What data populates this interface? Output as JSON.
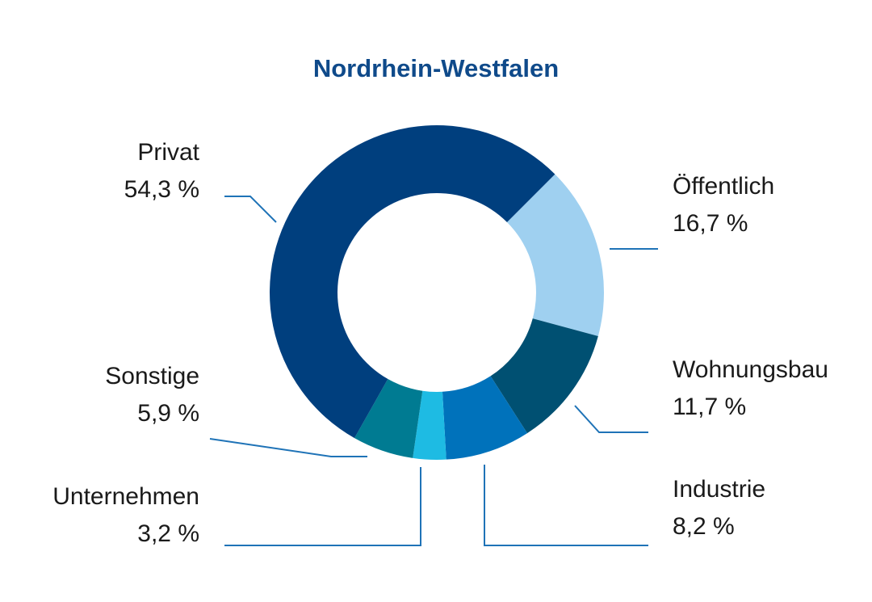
{
  "chart_data": {
    "type": "pie",
    "title": "Nordrhein-Westfalen",
    "slices": [
      {
        "label": "Öffentlich",
        "value": 16.7,
        "value_text": "16,7 %",
        "color": "#9fd0f0"
      },
      {
        "label": "Wohnungsbau",
        "value": 11.7,
        "value_text": "11,7 %",
        "color": "#005072"
      },
      {
        "label": "Industrie",
        "value": 8.2,
        "value_text": "8,2 %",
        "color": "#0072bb"
      },
      {
        "label": "Unternehmen",
        "value": 3.2,
        "value_text": "3,2 %",
        "color": "#1ebbe3"
      },
      {
        "label": "Sonstige",
        "value": 5.9,
        "value_text": "5,9 %",
        "color": "#007b92"
      },
      {
        "label": "Privat",
        "value": 54.3,
        "value_text": "54,3 %",
        "color": "#003f7e"
      }
    ]
  }
}
